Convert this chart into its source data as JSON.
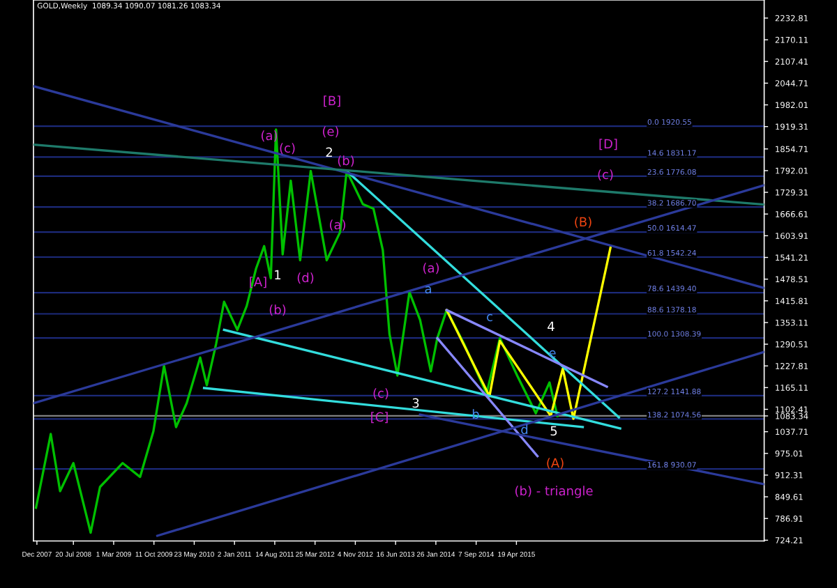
{
  "chart_data": {
    "type": "line",
    "title": "GOLD,Weekly  1089.34 1090.07 1081.26 1083.34",
    "xlim": [
      "2007-12-11",
      "2019-01-26"
    ],
    "xticks": [
      {
        "value": "2007-12-30",
        "label": "Dec 2007"
      },
      {
        "value": "2008-07-20",
        "label": "20 Jul 2008"
      },
      {
        "value": "2009-03-01",
        "label": "1 Mar 2009"
      },
      {
        "value": "2009-10-11",
        "label": "11 Oct 2009"
      },
      {
        "value": "2010-05-23",
        "label": "23 May 2010"
      },
      {
        "value": "2011-01-02",
        "label": "2 Jan 2011"
      },
      {
        "value": "2011-08-14",
        "label": "14 Aug 2011"
      },
      {
        "value": "2012-03-25",
        "label": "25 Mar 2012"
      },
      {
        "value": "2012-11-04",
        "label": "4 Nov 2012"
      },
      {
        "value": "2013-06-16",
        "label": "16 Jun 2013"
      },
      {
        "value": "2014-01-26",
        "label": "26 Jan 2014"
      },
      {
        "value": "2014-09-07",
        "label": "7 Sep 2014"
      },
      {
        "value": "2015-04-19",
        "label": "19 Apr 2015"
      }
    ],
    "ylim": [
      722,
      2285
    ],
    "yticks": [
      2232.81,
      2170.11,
      2107.41,
      2044.71,
      1982.01,
      1919.31,
      1854.71,
      1792.01,
      1729.31,
      1666.61,
      1603.91,
      1541.21,
      1478.51,
      1415.81,
      1353.11,
      1290.51,
      1227.81,
      1165.11,
      1102.41,
      1083.34,
      1037.71,
      975.01,
      912.31,
      849.61,
      786.91,
      724.21
    ],
    "grid": false,
    "legend": false,
    "series": [
      {
        "color": "#00c000",
        "x": [
          "2007-12-25",
          "2008-03-16",
          "2008-05-07",
          "2008-07-20",
          "2008-10-24",
          "2008-12-15",
          "2009-04-20",
          "2009-07-26",
          "2009-10-08",
          "2009-12-06",
          "2010-02-11",
          "2010-04-11",
          "2010-06-25",
          "2010-08-01",
          "2010-09-22",
          "2010-11-05",
          "2011-01-18",
          "2011-03-11",
          "2011-05-02",
          "2011-06-16",
          "2011-07-23",
          "2011-08-21",
          "2011-09-27",
          "2011-11-11",
          "2012-01-02",
          "2012-03-01",
          "2012-05-29",
          "2012-08-11",
          "2012-09-17",
          "2012-12-16",
          "2013-02-13",
          "2013-04-06",
          "2013-05-13",
          "2013-06-26",
          "2013-09-01",
          "2013-10-30",
          "2013-12-29",
          "2014-02-03",
          "2014-03-27",
          "2014-07-01",
          "2014-11-04",
          "2015-01-17",
          "2015-04-23",
          "2015-08-05",
          "2015-10-20",
          "2015-12-03"
        ],
        "values": [
          818,
          1031,
          866,
          947,
          746,
          878,
          947,
          907,
          1039,
          1228,
          1051,
          1120,
          1252,
          1172,
          1292,
          1413,
          1332,
          1401,
          1509,
          1574,
          1481,
          1911,
          1550,
          1763,
          1533,
          1791,
          1533,
          1614,
          1791,
          1695,
          1682,
          1562,
          1320,
          1200,
          1441,
          1361,
          1212,
          1308,
          1389,
          1292,
          1148,
          1308,
          1200,
          1091,
          1180,
          1083
        ]
      },
      {
        "type": "line",
        "color": "#ffff00",
        "x": [
          "2014-03-27",
          "2014-11-20",
          "2015-01-17",
          "2015-10-27",
          "2016-01-02",
          "2016-03-01",
          "2016-09-25"
        ],
        "values": [
          1389,
          1140,
          1300,
          1083,
          1220,
          1075,
          1574
        ]
      },
      {
        "type": "line",
        "color": "#33dddd",
        "x": [
          "2012-09-17",
          "2016-11-09"
        ],
        "values": [
          1791,
          1079
        ]
      },
      {
        "type": "line",
        "color": "#33dddd",
        "x": [
          "2010-11-05",
          "2016-11-16"
        ],
        "values": [
          1332,
          1047
        ]
      },
      {
        "type": "line",
        "color": "#33dddd",
        "x": [
          "2010-07-17",
          "2016-04-22"
        ],
        "values": [
          1164,
          1051
        ]
      },
      {
        "type": "line",
        "color": "#8888ff",
        "x": [
          "2014-03-27",
          "2016-09-03"
        ],
        "values": [
          1389,
          1168
        ]
      },
      {
        "type": "line",
        "color": "#8888ff",
        "x": [
          "2014-02-03",
          "2015-08-14"
        ],
        "values": [
          1308,
          967
        ]
      },
      {
        "type": "line",
        "color": "#2b3a9a",
        "x": [
          "2007-12-11",
          "2019-01-26"
        ],
        "values": [
          2036,
          1453
        ]
      },
      {
        "type": "line",
        "color": "#1e7a6a",
        "x": [
          "2007-12-11",
          "2019-01-26"
        ],
        "values": [
          1867,
          1694
        ]
      },
      {
        "type": "line",
        "color": "#2b3a9a",
        "x": [
          "2007-12-11",
          "2019-01-26"
        ],
        "values": [
          1120,
          1750
        ]
      },
      {
        "type": "line",
        "color": "#2b3a9a",
        "x": [
          "2009-10-30",
          "2019-01-26"
        ],
        "values": [
          737,
          1268
        ]
      },
      {
        "type": "line",
        "color": "#2b3a9a",
        "x": [
          "2013-10-30",
          "2019-01-26"
        ],
        "values": [
          1087,
          886
        ]
      }
    ],
    "ref_lines": [
      {
        "axis": "y",
        "value": 1920.55,
        "label": "0.0 1920.55",
        "color": "#1c2a7a"
      },
      {
        "axis": "y",
        "value": 1831.17,
        "label": "14.6 1831.17",
        "color": "#1c2a7a"
      },
      {
        "axis": "y",
        "value": 1776.08,
        "label": "23.6 1776.08",
        "color": "#1c2a7a"
      },
      {
        "axis": "y",
        "value": 1686.7,
        "label": "38.2 1686.70",
        "color": "#1c2a7a"
      },
      {
        "axis": "y",
        "value": 1614.47,
        "label": "50.0 1614.47",
        "color": "#1c2a7a"
      },
      {
        "axis": "y",
        "value": 1542.24,
        "label": "61.8 1542.24",
        "color": "#1c2a7a"
      },
      {
        "axis": "y",
        "value": 1439.4,
        "label": "78.6 1439.40",
        "color": "#1c2a7a"
      },
      {
        "axis": "y",
        "value": 1378.18,
        "label": "88.6 1378.18",
        "color": "#1c2a7a"
      },
      {
        "axis": "y",
        "value": 1308.39,
        "label": "100.0 1308.39",
        "color": "#1c2a7a"
      },
      {
        "axis": "y",
        "value": 1141.88,
        "label": "127.2 1141.88",
        "color": "#1c2a7a"
      },
      {
        "axis": "y",
        "value": 1074.56,
        "label": "138.2 1074.56",
        "color": "#1c2a7a"
      },
      {
        "axis": "y",
        "value": 930.07,
        "label": "161.8 930.07",
        "color": "#1c2a7a"
      },
      {
        "axis": "y",
        "value": 1083.34,
        "color": "#808080"
      }
    ],
    "annotations": [
      "[B]",
      "(a)",
      "(c)",
      "(e)",
      "2",
      "(b)",
      "(a)",
      "1",
      "[A]",
      "(d)",
      "(b)",
      "(c)",
      "[C]",
      "3",
      "(a)",
      "a",
      "c",
      "b",
      "d",
      "4",
      "e",
      "5",
      "(A)",
      "(b) - triangle",
      "(B)",
      "[D]",
      "(c)"
    ]
  }
}
